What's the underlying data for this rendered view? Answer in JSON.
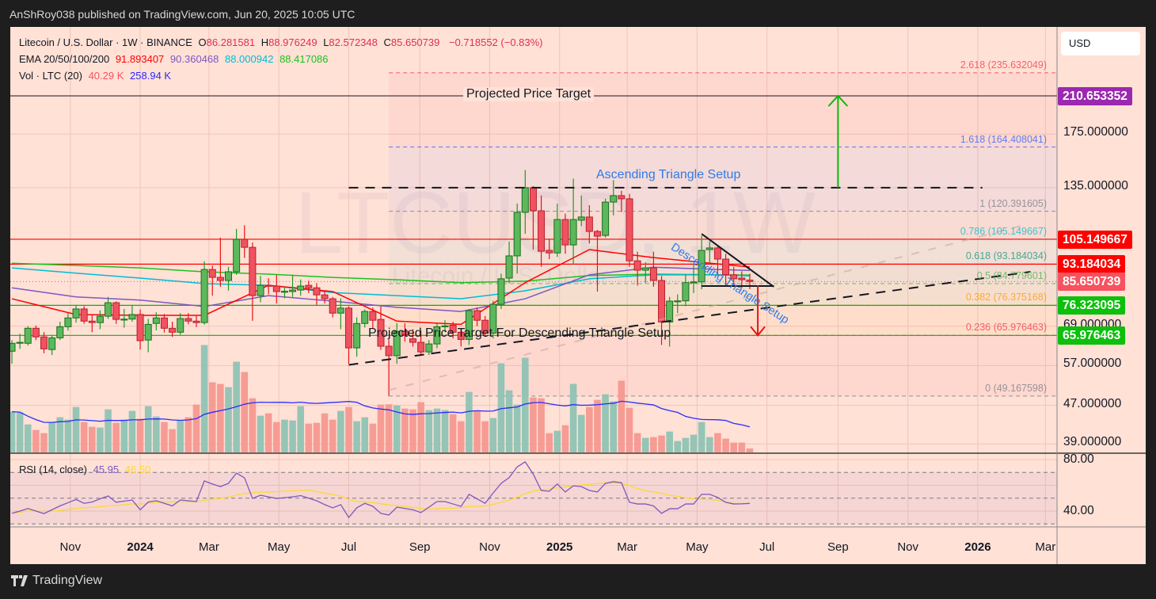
{
  "header": {
    "published": "AnShRoy038 published on TradingView.com, Jun 20, 2025 10:05 UTC"
  },
  "legend": {
    "symbol": "Litecoin / U.S. Dollar · 1W · BINANCE",
    "o_label": "O",
    "o": "86.281581",
    "h_label": "H",
    "h": "88.976249",
    "l_label": "L",
    "l": "82.572348",
    "c_label": "C",
    "c": "85.650739",
    "change": "−0.718552 (−0.83%)",
    "ema_label": "EMA 20/50/100/200",
    "ema20": "91.893407",
    "ema50": "90.360468",
    "ema100": "88.000942",
    "ema200": "88.417086",
    "vol_label": "Vol · LTC (20)",
    "vol": "40.29 K",
    "vol_ma": "258.94 K"
  },
  "watermark": {
    "symbol": "LTCUSD, 1W",
    "name": "Litecoin / U.S. Dollar"
  },
  "currency_button": "USD",
  "colors": {
    "up": "#5cb85c",
    "down": "#f0525f",
    "ema20": "#ff0000",
    "ema50": "#7e57c2",
    "ema100": "#00bcd4",
    "ema200": "#1cc21c",
    "vol_ma": "#2a2aff",
    "rsi": "#7e57c2",
    "rsi_ma": "#fdd835",
    "target": "#9c27b0"
  },
  "price_axis": {
    "plain": [
      "175.000000",
      "135.000000",
      "69.000000",
      "57.000000",
      "47.000000",
      "39.000000"
    ],
    "badges": [
      {
        "value": "210.653352",
        "color": "#9c27b0"
      },
      {
        "value": "105.149667",
        "color": "#ff0000"
      },
      {
        "value": "93.184034",
        "color": "#ff0000"
      },
      {
        "value": "85.650739",
        "color": "#f7525f"
      },
      {
        "value": "76.323095",
        "color": "#0cc00c"
      },
      {
        "value": "65.976463",
        "color": "#0cc00c"
      }
    ]
  },
  "rsi_axis": [
    "80.00",
    "40.00"
  ],
  "rsi_legend": {
    "label": "RSI (14, close)",
    "rsi": "45.95",
    "ma": "46.50"
  },
  "time_axis": [
    {
      "label": "Nov",
      "date": "2023-11-01",
      "year": false
    },
    {
      "label": "2024",
      "date": "2024-01-01",
      "year": true
    },
    {
      "label": "Mar",
      "date": "2024-03-01",
      "year": false
    },
    {
      "label": "May",
      "date": "2024-05-01",
      "year": false
    },
    {
      "label": "Jul",
      "date": "2024-07-01",
      "year": false
    },
    {
      "label": "Sep",
      "date": "2024-09-01",
      "year": false
    },
    {
      "label": "Nov",
      "date": "2024-11-01",
      "year": false
    },
    {
      "label": "2025",
      "date": "2025-01-01",
      "year": true
    },
    {
      "label": "Mar",
      "date": "2025-03-01",
      "year": false
    },
    {
      "label": "May",
      "date": "2025-05-01",
      "year": false
    },
    {
      "label": "Jul",
      "date": "2025-07-01",
      "year": false
    },
    {
      "label": "Sep",
      "date": "2025-09-01",
      "year": false
    },
    {
      "label": "Nov",
      "date": "2025-11-01",
      "year": false
    },
    {
      "label": "2026",
      "date": "2026-01-01",
      "year": true
    },
    {
      "label": "Mar",
      "date": "2026-03-01",
      "year": false
    }
  ],
  "fib": {
    "start_date": "2024-08-05",
    "levels": [
      {
        "ratio": "0",
        "price": "49.167598",
        "color": "#787b86"
      },
      {
        "ratio": "0.236",
        "price": "65.976463",
        "color": "#f23645"
      },
      {
        "ratio": "0.382",
        "price": "76.375168",
        "color": "#ff9800"
      },
      {
        "ratio": "0.5",
        "price": "84.779601",
        "color": "#4caf50"
      },
      {
        "ratio": "0.618",
        "price": "93.184034",
        "color": "#089981"
      },
      {
        "ratio": "0.786",
        "price": "105.149667",
        "color": "#00bcd4"
      },
      {
        "ratio": "1",
        "price": "120.391605",
        "color": "#787b86"
      },
      {
        "ratio": "1.618",
        "price": "164.408041",
        "color": "#2962ff"
      },
      {
        "ratio": "2.618",
        "price": "235.632049",
        "color": "#f23645"
      }
    ]
  },
  "drawings": {
    "projected_target": {
      "label": "Projected Price Target",
      "price": 210.653352
    },
    "resistance_lines": [
      105.149667,
      93.184034
    ],
    "support_lines": [
      76.323095,
      65.976463
    ],
    "ascending_label": "Ascending Triangle Setup",
    "ascending_top": {
      "from": [
        "2024-07-01",
        135
      ],
      "to": [
        "2026-01-05",
        135
      ]
    },
    "ascending_support": {
      "from": [
        "2024-07-01",
        57.2
      ],
      "to": [
        "2026-02-16",
        89.8
      ]
    },
    "faint_trend": {
      "from": [
        "2024-08-05",
        50.6
      ],
      "to": [
        "2026-02-09",
        112.4
      ]
    },
    "descending_label": "Descending Triangle Setup",
    "descending_top": {
      "from": [
        "2025-05-05",
        107.9
      ],
      "to": [
        "2025-07-07",
        83.5
      ]
    },
    "descending_base": {
      "from": [
        "2025-05-05",
        83.8
      ],
      "to": [
        "2025-07-07",
        83.8
      ]
    },
    "descending_target_label": "Projected Price Target For Descending Triangle Setup",
    "up_arrow": {
      "date": "2025-09-01",
      "from": 135,
      "to": 210.653352
    },
    "down_arrow": {
      "date": "2025-06-23",
      "from": 84.1,
      "to": 65.976463
    }
  },
  "chart_data": {
    "type": "candlestick",
    "symbol": "LTCUSD",
    "timeframe": "1W",
    "y_scale": "log",
    "ylim": [
      37,
      260
    ],
    "grid": true,
    "dates": [
      "2023-09-11",
      "2023-09-18",
      "2023-09-25",
      "2023-10-02",
      "2023-10-09",
      "2023-10-16",
      "2023-10-23",
      "2023-10-30",
      "2023-11-06",
      "2023-11-13",
      "2023-11-20",
      "2023-11-27",
      "2023-12-04",
      "2023-12-11",
      "2023-12-18",
      "2023-12-25",
      "2024-01-01",
      "2024-01-08",
      "2024-01-15",
      "2024-01-22",
      "2024-01-29",
      "2024-02-05",
      "2024-02-12",
      "2024-02-19",
      "2024-02-26",
      "2024-03-04",
      "2024-03-11",
      "2024-03-18",
      "2024-03-25",
      "2024-04-01",
      "2024-04-08",
      "2024-04-15",
      "2024-04-22",
      "2024-04-29",
      "2024-05-06",
      "2024-05-13",
      "2024-05-20",
      "2024-05-27",
      "2024-06-03",
      "2024-06-10",
      "2024-06-17",
      "2024-06-24",
      "2024-07-01",
      "2024-07-08",
      "2024-07-15",
      "2024-07-22",
      "2024-07-29",
      "2024-08-05",
      "2024-08-12",
      "2024-08-19",
      "2024-08-26",
      "2024-09-02",
      "2024-09-09",
      "2024-09-16",
      "2024-09-23",
      "2024-09-30",
      "2024-10-07",
      "2024-10-14",
      "2024-10-21",
      "2024-10-28",
      "2024-11-04",
      "2024-11-11",
      "2024-11-18",
      "2024-11-25",
      "2024-12-02",
      "2024-12-09",
      "2024-12-16",
      "2024-12-23",
      "2024-12-30",
      "2025-01-06",
      "2025-01-13",
      "2025-01-20",
      "2025-01-27",
      "2025-02-03",
      "2025-02-10",
      "2025-02-17",
      "2025-02-24",
      "2025-03-03",
      "2025-03-10",
      "2025-03-17",
      "2025-03-24",
      "2025-03-31",
      "2025-04-07",
      "2025-04-14",
      "2025-04-21",
      "2025-04-28",
      "2025-05-05",
      "2025-05-12",
      "2025-05-19",
      "2025-05-26",
      "2025-06-02",
      "2025-06-09",
      "2025-06-16"
    ],
    "ohlc": [
      [
        61.1,
        64.5,
        57.5,
        63.5
      ],
      [
        63.6,
        66.5,
        61.8,
        63.8
      ],
      [
        63.5,
        69.0,
        62.8,
        68.3
      ],
      [
        68.3,
        69.2,
        64.5,
        65.5
      ],
      [
        65.5,
        67.0,
        60.5,
        61.8
      ],
      [
        61.6,
        66.0,
        60.0,
        65.2
      ],
      [
        65.2,
        70.5,
        64.5,
        68.8
      ],
      [
        68.8,
        73.5,
        67.5,
        71.8
      ],
      [
        71.8,
        76.5,
        70.2,
        75.0
      ],
      [
        75.0,
        76.0,
        69.8,
        70.7
      ],
      [
        70.7,
        73.0,
        67.0,
        70.2
      ],
      [
        70.2,
        74.5,
        68.0,
        72.4
      ],
      [
        72.4,
        79.5,
        71.5,
        77.3
      ],
      [
        77.3,
        77.8,
        69.8,
        71.3
      ],
      [
        71.3,
        75.0,
        68.5,
        71.4
      ],
      [
        71.4,
        76.5,
        70.5,
        73.0
      ],
      [
        73.0,
        74.8,
        61.6,
        64.3
      ],
      [
        64.5,
        71.5,
        60.8,
        69.6
      ],
      [
        69.9,
        73.8,
        67.6,
        71.8
      ],
      [
        71.8,
        73.2,
        66.9,
        68.3
      ],
      [
        68.3,
        70.5,
        65.5,
        67.0
      ],
      [
        67.0,
        73.5,
        66.2,
        71.6
      ],
      [
        71.6,
        73.5,
        69.6,
        70.7
      ],
      [
        70.7,
        72.5,
        68.7,
        70.2
      ],
      [
        70.2,
        94.5,
        69.5,
        90.8
      ],
      [
        90.8,
        92.5,
        80.0,
        87.4
      ],
      [
        87.4,
        106.0,
        83.5,
        86.1
      ],
      [
        86.1,
        92.0,
        82.0,
        89.8
      ],
      [
        89.8,
        110.5,
        88.5,
        105.1
      ],
      [
        105.1,
        112.5,
        96.0,
        101.1
      ],
      [
        101.1,
        103.5,
        70.8,
        80.0
      ],
      [
        80.0,
        88.0,
        77.5,
        84.1
      ],
      [
        84.1,
        87.0,
        80.5,
        84.0
      ],
      [
        83.8,
        88.5,
        77.0,
        81.6
      ],
      [
        81.6,
        83.5,
        79.0,
        81.7
      ],
      [
        81.6,
        88.5,
        79.5,
        82.2
      ],
      [
        82.2,
        86.5,
        80.0,
        83.8
      ],
      [
        84.1,
        86.0,
        81.0,
        83.1
      ],
      [
        83.1,
        85.0,
        76.5,
        80.3
      ],
      [
        80.3,
        82.0,
        77.0,
        78.8
      ],
      [
        78.8,
        79.5,
        72.0,
        73.5
      ],
      [
        73.5,
        79.0,
        68.0,
        75.3
      ],
      [
        75.3,
        76.0,
        57.5,
        62.1
      ],
      [
        62.1,
        72.0,
        59.5,
        69.9
      ],
      [
        69.9,
        74.8,
        68.5,
        74.1
      ],
      [
        74.1,
        75.5,
        68.0,
        71.0
      ],
      [
        71.3,
        76.0,
        61.5,
        62.6
      ],
      [
        62.6,
        64.5,
        49.17,
        59.8
      ],
      [
        59.8,
        70.0,
        57.5,
        67.3
      ],
      [
        67.3,
        70.0,
        64.0,
        66.2
      ],
      [
        64.9,
        68.0,
        62.5,
        63.8
      ],
      [
        63.8,
        67.5,
        60.0,
        60.9
      ],
      [
        60.9,
        64.5,
        60.0,
        63.3
      ],
      [
        63.3,
        70.0,
        62.0,
        68.8
      ],
      [
        68.8,
        71.0,
        67.0,
        69.1
      ],
      [
        69.3,
        70.5,
        65.0,
        67.0
      ],
      [
        67.0,
        68.0,
        62.5,
        64.7
      ],
      [
        64.7,
        75.0,
        63.0,
        74.4
      ],
      [
        74.4,
        75.5,
        69.0,
        71.0
      ],
      [
        71.0,
        72.5,
        65.5,
        66.7
      ],
      [
        66.7,
        78.0,
        65.0,
        76.7
      ],
      [
        76.7,
        89.0,
        75.0,
        86.8
      ],
      [
        87.1,
        104.0,
        85.0,
        97.0
      ],
      [
        97.0,
        125.0,
        89.0,
        119.8
      ],
      [
        119.8,
        147.0,
        108.0,
        135.0
      ],
      [
        135.0,
        136.0,
        100.0,
        120.7
      ],
      [
        120.7,
        130.0,
        92.0,
        99.2
      ],
      [
        99.6,
        105.0,
        95.5,
        98.4
      ],
      [
        98.4,
        125.0,
        96.5,
        115.7
      ],
      [
        115.7,
        119.0,
        98.0,
        102.3
      ],
      [
        102.3,
        141.0,
        93.0,
        115.7
      ],
      [
        115.3,
        130.0,
        112.0,
        117.1
      ],
      [
        117.1,
        124.0,
        103.0,
        109.2
      ],
      [
        109.2,
        110.0,
        81.6,
        106.7
      ],
      [
        107.1,
        128.0,
        106.0,
        125.9
      ],
      [
        125.9,
        140.0,
        118.0,
        129.9
      ],
      [
        129.9,
        133.0,
        120.0,
        127.9
      ],
      [
        127.9,
        131.0,
        92.0,
        94.7
      ],
      [
        94.7,
        99.0,
        84.0,
        90.5
      ],
      [
        90.5,
        94.0,
        85.0,
        91.5
      ],
      [
        91.5,
        99.0,
        83.5,
        86.1
      ],
      [
        86.1,
        88.0,
        63.0,
        70.4
      ],
      [
        70.4,
        79.5,
        62.5,
        77.9
      ],
      [
        77.9,
        80.5,
        73.5,
        78.0
      ],
      [
        78.0,
        88.5,
        76.0,
        85.2
      ],
      [
        85.2,
        93.0,
        81.0,
        85.5
      ],
      [
        85.5,
        107.0,
        82.5,
        99.6
      ],
      [
        100.0,
        104.0,
        93.0,
        100.8
      ],
      [
        100.8,
        101.5,
        88.5,
        95.5
      ],
      [
        95.5,
        98.0,
        84.0,
        88.5
      ],
      [
        88.5,
        92.0,
        83.5,
        86.8
      ],
      [
        87.1,
        90.0,
        83.0,
        86.4
      ],
      [
        86.281581,
        88.976249,
        82.572348,
        85.650739
      ]
    ],
    "volume_k": [
      411,
      403,
      283,
      227,
      195,
      299,
      355,
      331,
      459,
      307,
      259,
      251,
      435,
      299,
      331,
      419,
      339,
      467,
      363,
      307,
      235,
      323,
      355,
      483,
      1084,
      708,
      692,
      659,
      916,
      812,
      547,
      371,
      395,
      307,
      331,
      323,
      467,
      291,
      299,
      395,
      331,
      419,
      459,
      315,
      355,
      291,
      483,
      486,
      475,
      443,
      435,
      507,
      427,
      443,
      427,
      387,
      315,
      611,
      419,
      315,
      347,
      900,
      627,
      483,
      956,
      555,
      547,
      195,
      219,
      275,
      692,
      379,
      459,
      531,
      587,
      515,
      724,
      451,
      195,
      147,
      155,
      171,
      211,
      115,
      147,
      179,
      307,
      155,
      195,
      139,
      99,
      99,
      40.29
    ],
    "ema": {
      "dates": [
        "2023-09-11",
        "2023-11-06",
        "2024-01-01",
        "2024-02-26",
        "2024-04-22",
        "2024-06-17",
        "2024-08-12",
        "2024-10-07",
        "2024-12-02",
        "2025-01-27",
        "2025-03-24",
        "2025-05-19",
        "2025-06-16"
      ],
      "ema20": [
        78.8,
        73.0,
        72.7,
        72.7,
        84.1,
        81.6,
        70.7,
        69.6,
        85.2,
        100.0,
        96.2,
        93.3,
        91.893407
      ],
      "ema50": [
        83.1,
        79.5,
        78.3,
        75.9,
        80.0,
        77.9,
        75.6,
        74.1,
        78.8,
        88.5,
        91.8,
        90.8,
        90.360468
      ],
      "ema100": [
        91.5,
        89.2,
        87.1,
        84.8,
        84.1,
        81.2,
        80.0,
        78.8,
        81.9,
        86.8,
        88.5,
        88.5,
        88.000942
      ],
      "ema200": [
        93.6,
        92.6,
        91.5,
        89.8,
        88.8,
        87.4,
        86.4,
        85.2,
        85.8,
        88.2,
        88.8,
        88.5,
        88.417086
      ]
    },
    "rsi": [
      38.2,
      40,
      42,
      40,
      38,
      41,
      44,
      46.5,
      49,
      46,
      47,
      49.5,
      51.7,
      46.8,
      47.7,
      48.6,
      41,
      47,
      48,
      46,
      44,
      48.6,
      48,
      47.4,
      63.4,
      61,
      59,
      61.5,
      69.5,
      65.8,
      49.8,
      52.3,
      51,
      49.8,
      50.4,
      51,
      52,
      50,
      48,
      45,
      42.5,
      45,
      35,
      42.5,
      46,
      43.7,
      38.2,
      36.9,
      43,
      42,
      41,
      38.8,
      43,
      47.4,
      47.4,
      45.5,
      43.6,
      53,
      49.5,
      46,
      54,
      61.5,
      66,
      74.3,
      78.2,
      68.7,
      56,
      55.4,
      61,
      54.8,
      59.6,
      59,
      56,
      54.8,
      61.5,
      62.8,
      62,
      46.8,
      45.5,
      45.5,
      44,
      38.2,
      41.8,
      41.8,
      45.5,
      45.5,
      53,
      53,
      50.6,
      46.8,
      45.5,
      45.6,
      45.95
    ],
    "rsi_levels": [
      70,
      50,
      30
    ]
  }
}
